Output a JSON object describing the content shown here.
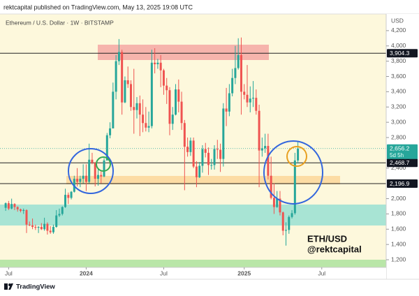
{
  "header": "rektcapital published on TradingView.com, May 13, 2025 19:08 UTC",
  "footer_brand": "TradingView",
  "chart_data": {
    "type": "candlestick",
    "title": "Ethereum / U.S. Dollar · 1W · BITSTAMP",
    "y_axis_label": "USD",
    "annotations": [
      "ETH/USD",
      "@rektcapital"
    ],
    "up_color": "#26a69a",
    "down_color": "#ef5350",
    "xlim": [
      -1.9,
      127.6
    ],
    "xticks": [
      {
        "value": 1,
        "label": "Jul"
      },
      {
        "value": 27,
        "label": "2024"
      },
      {
        "value": 53,
        "label": "Jul"
      },
      {
        "value": 80,
        "label": "2025"
      },
      {
        "value": 106,
        "label": "Jul"
      }
    ],
    "ylim": [
      1100,
      4400
    ],
    "yticks": [
      {
        "value": 4200,
        "label": "4,200"
      },
      {
        "value": 4000,
        "label": "4,000"
      },
      {
        "value": 3800,
        "label": "3,800"
      },
      {
        "value": 3600,
        "label": "3,600"
      },
      {
        "value": 3400,
        "label": "3,400"
      },
      {
        "value": 3200,
        "label": "3,200"
      },
      {
        "value": 3000,
        "label": "3,000"
      },
      {
        "value": 2800,
        "label": "2,800"
      },
      {
        "value": 2400,
        "label": "2,400"
      },
      {
        "value": 2000,
        "label": "2,000"
      },
      {
        "value": 1800,
        "label": "1,800"
      },
      {
        "value": 1600,
        "label": "1,600"
      },
      {
        "value": 1400,
        "label": "1,400"
      },
      {
        "value": 1200,
        "label": "1,200"
      }
    ],
    "price_levels": [
      {
        "value": 3904.3,
        "label": "3,904.3"
      },
      {
        "value": 2468.7,
        "label": "2,468.7"
      },
      {
        "value": 2196.9,
        "label": "2,196.9"
      }
    ],
    "last_price": {
      "value": 2656.2,
      "label": "2,656.2",
      "countdown": "5d 5h"
    },
    "open": [
      1880,
      1940,
      1870,
      1930,
      1890,
      1860,
      1840,
      1850,
      1660,
      1650,
      1630,
      1620,
      1630,
      1600,
      1670,
      1580,
      1560,
      1630,
      1780,
      1800,
      1890,
      2050,
      2010,
      2090,
      2260,
      2220,
      2260,
      2300,
      2220,
      2510,
      2470,
      2260,
      2310,
      2290,
      2500,
      2830,
      2920,
      3400,
      3800,
      3920,
      3260,
      3550,
      3500,
      3200,
      3160,
      3250,
      3100,
      2990,
      2930,
      2950,
      3780,
      3760,
      3780,
      3680,
      3480,
      3420,
      2980,
      3100,
      3430,
      3270,
      2990,
      2680,
      2610,
      2760,
      2420,
      2280,
      2430,
      2650,
      2600,
      2440,
      2440,
      2650,
      2640,
      2520,
      3180,
      3140,
      3380,
      3580,
      3710,
      3880,
      3400,
      3360,
      3260,
      3310,
      3320,
      3150,
      2630,
      2660,
      2690,
      2300,
      2010,
      1890,
      2000,
      1820,
      1580,
      1590,
      1760,
      1810,
      2500
    ],
    "high": [
      1950,
      1970,
      2000,
      1940,
      1900,
      1870,
      1870,
      1860,
      1700,
      1740,
      1660,
      1640,
      1680,
      1750,
      1690,
      1640,
      1660,
      1850,
      1870,
      1900,
      2130,
      2080,
      2100,
      2300,
      2400,
      2300,
      2450,
      2450,
      2720,
      2600,
      2480,
      2400,
      2370,
      2530,
      2860,
      3000,
      3520,
      3880,
      4090,
      3950,
      3600,
      3730,
      3550,
      3700,
      3330,
      3350,
      3300,
      3200,
      3140,
      3950,
      3970,
      3830,
      3880,
      3700,
      3580,
      3460,
      3200,
      3500,
      3560,
      3400,
      3030,
      2800,
      2800,
      2800,
      2490,
      2480,
      2700,
      2730,
      2670,
      2520,
      2700,
      2770,
      2720,
      3250,
      3450,
      3500,
      3700,
      4000,
      4100,
      4110,
      3500,
      3750,
      3470,
      3540,
      3430,
      3230,
      2800,
      2850,
      2850,
      2550,
      2200,
      2100,
      2100,
      1830,
      1690,
      1780,
      1850,
      2600,
      2740
    ],
    "low": [
      1840,
      1850,
      1860,
      1850,
      1830,
      1820,
      1800,
      1550,
      1640,
      1600,
      1590,
      1550,
      1590,
      1580,
      1530,
      1540,
      1540,
      1620,
      1760,
      1780,
      1880,
      1930,
      1990,
      2080,
      2160,
      2150,
      2200,
      2100,
      2200,
      2450,
      2160,
      2170,
      2200,
      2280,
      2500,
      2790,
      2920,
      3300,
      3750,
      3100,
      3250,
      3450,
      3150,
      2850,
      3050,
      2820,
      2870,
      2880,
      2870,
      2920,
      3640,
      3700,
      3460,
      3360,
      3240,
      2830,
      2900,
      3090,
      3130,
      2900,
      2110,
      2550,
      2560,
      2400,
      2150,
      2270,
      2340,
      2540,
      2310,
      2380,
      2380,
      2520,
      2350,
      2420,
      2950,
      3080,
      3340,
      3500,
      3690,
      3100,
      3300,
      3200,
      3130,
      3200,
      3100,
      2150,
      2550,
      2600,
      2250,
      1990,
      1800,
      1880,
      1780,
      1520,
      1385,
      1540,
      1740,
      1790,
      2460
    ],
    "close": [
      1940,
      1870,
      1930,
      1890,
      1860,
      1840,
      1850,
      1660,
      1650,
      1630,
      1620,
      1630,
      1600,
      1670,
      1580,
      1560,
      1630,
      1780,
      1800,
      1890,
      2050,
      2010,
      2090,
      2260,
      2220,
      2260,
      2300,
      2220,
      2510,
      2470,
      2260,
      2310,
      2290,
      2500,
      2830,
      2920,
      3400,
      3800,
      3920,
      3260,
      3550,
      3500,
      3200,
      3160,
      3250,
      3100,
      2990,
      2930,
      2950,
      3780,
      3760,
      3780,
      3680,
      3480,
      3420,
      2980,
      3100,
      3430,
      3270,
      2990,
      2680,
      2610,
      2760,
      2420,
      2280,
      2430,
      2650,
      2600,
      2440,
      2440,
      2650,
      2640,
      2520,
      3180,
      3140,
      3380,
      3580,
      3710,
      3880,
      3400,
      3360,
      3260,
      3310,
      3320,
      3150,
      2630,
      2660,
      2690,
      2300,
      2010,
      1890,
      2000,
      1820,
      1580,
      1590,
      1760,
      1810,
      2500,
      2656.2
    ]
  }
}
